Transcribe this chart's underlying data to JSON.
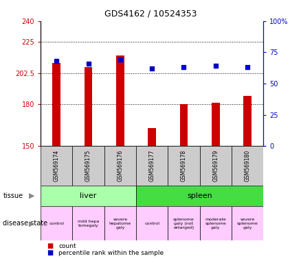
{
  "title": "GDS4162 / 10524353",
  "samples": [
    "GSM569174",
    "GSM569175",
    "GSM569176",
    "GSM569177",
    "GSM569178",
    "GSM569179",
    "GSM569180"
  ],
  "counts": [
    210,
    207,
    215,
    163,
    180,
    181,
    186
  ],
  "percentile_ranks": [
    68,
    66,
    69,
    62,
    63,
    64,
    63
  ],
  "ylim_left": [
    150,
    240
  ],
  "ylim_right": [
    0,
    100
  ],
  "yticks_left": [
    150,
    180,
    202.5,
    225,
    240
  ],
  "yticks_right": [
    0,
    25,
    50,
    75,
    100
  ],
  "bar_color": "#cc0000",
  "dot_color": "#0000cc",
  "tissue_groups": [
    {
      "label": "liver",
      "start": 0,
      "end": 3,
      "color": "#aaffaa"
    },
    {
      "label": "spleen",
      "start": 3,
      "end": 7,
      "color": "#44dd44"
    }
  ],
  "disease_states": [
    {
      "label": "control",
      "start": 0,
      "end": 1,
      "color": "#ffccff"
    },
    {
      "label": "mild hepa\ntomegaly",
      "start": 1,
      "end": 2,
      "color": "#ffccff"
    },
    {
      "label": "severe\nhepatome\ngaly",
      "start": 2,
      "end": 3,
      "color": "#ffccff"
    },
    {
      "label": "control",
      "start": 3,
      "end": 4,
      "color": "#ffccff"
    },
    {
      "label": "splenome\ngaly (not\nenlarged)",
      "start": 4,
      "end": 5,
      "color": "#ffccff"
    },
    {
      "label": "moderate\nsplenome\ngaly",
      "start": 5,
      "end": 6,
      "color": "#ffccff"
    },
    {
      "label": "severe\nsplenome\ngaly",
      "start": 6,
      "end": 7,
      "color": "#ffccff"
    }
  ],
  "sample_bg_color": "#cccccc",
  "background_color": "#ffffff",
  "title_fontsize": 9,
  "bar_width": 0.25
}
